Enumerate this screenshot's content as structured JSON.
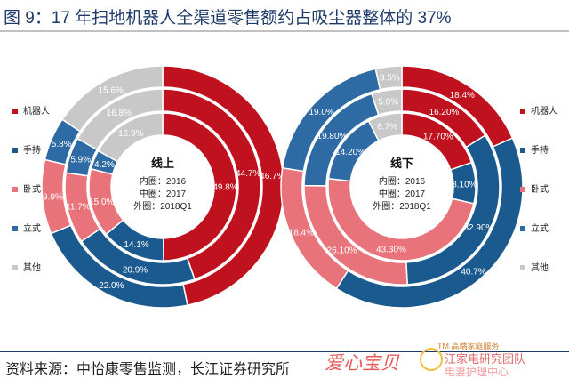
{
  "title": "图 9：17 年扫地机器人全渠道零售额约占吸尘器整体的 37%",
  "source": "资料来源：中怡康零售监测，长江证券研究所",
  "watermark": {
    "main": "爱心宝贝",
    "line1": "TM 高端家庭服务",
    "line2": "江家电研究团队",
    "line3": "电妻护理中心"
  },
  "colors": {
    "机器人": "#c0111f",
    "手持": "#1b5a8e",
    "卧式": "#e8737a",
    "立式": "#2e6aa4",
    "其他": "#c8c8c8"
  },
  "chart_data": [
    {
      "type": "pie",
      "variant": "concentric-donut",
      "center_title": "线上",
      "ring_legend": [
        "内圈：2016",
        "中圈：2017",
        "外圈：2018Q1"
      ],
      "categories": [
        "机器人",
        "手持",
        "卧式",
        "立式",
        "其他"
      ],
      "rings": [
        {
          "name": "2016",
          "values": [
            49.8,
            14.1,
            15.0,
            4.2,
            16.9
          ],
          "labels": [
            "49.8%",
            "14.1%",
            "15.0%",
            "4.2%",
            "16.9%"
          ]
        },
        {
          "name": "2017",
          "values": [
            44.7,
            20.9,
            11.7,
            5.9,
            16.8
          ],
          "labels": [
            "44.7%",
            "20.9%",
            "11.7%",
            "5.9%",
            "16.8%"
          ]
        },
        {
          "name": "2018Q1",
          "values": [
            46.7,
            22.0,
            9.9,
            5.8,
            15.6
          ],
          "labels": [
            "46.7%",
            "22.0%",
            "9.9%",
            "5.8%",
            "15.6%"
          ]
        }
      ]
    },
    {
      "type": "pie",
      "variant": "concentric-donut",
      "center_title": "线下",
      "ring_legend": [
        "内圈：2016",
        "中圈：2017",
        "外圈：2018Q1"
      ],
      "categories": [
        "机器人",
        "手持",
        "卧式",
        "立式",
        "其他"
      ],
      "rings": [
        {
          "name": "2016",
          "values": [
            17.7,
            8.1,
            43.3,
            14.2,
            6.7
          ],
          "labels": [
            "17.70%",
            "8.10%",
            "43.30%",
            "14.20%",
            "6.7%"
          ]
        },
        {
          "name": "2017",
          "values": [
            16.2,
            32.9,
            26.1,
            19.8,
            5.0
          ],
          "labels": [
            "16.20%",
            "32.90%",
            "26.10%",
            "19.80%",
            "5.0%"
          ]
        },
        {
          "name": "2018Q1",
          "values": [
            18.4,
            40.7,
            18.4,
            19.0,
            3.5
          ],
          "labels": [
            "18.4%",
            "40.7%",
            "18.4%",
            "19.0%",
            "3.5%"
          ]
        }
      ]
    }
  ],
  "legend": [
    "机器人",
    "手持",
    "卧式",
    "立式",
    "其他"
  ]
}
